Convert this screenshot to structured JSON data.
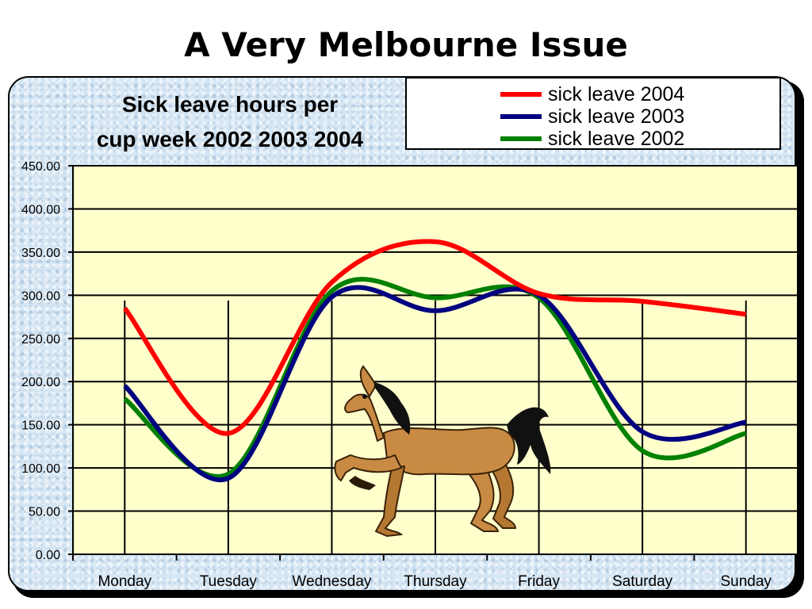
{
  "slide": {
    "title": "A Very Melbourne Issue"
  },
  "chart_data": {
    "type": "line",
    "title_lines": [
      "Sick leave hours per",
      "cup week 2002 2003 2004"
    ],
    "categories": [
      "Monday",
      "Tuesday",
      "Wednesday",
      "Thursday",
      "Friday",
      "Saturday",
      "Sunday"
    ],
    "ylim": [
      0,
      450
    ],
    "yticks": [
      "0.00",
      "50.00",
      "100.00",
      "150.00",
      "200.00",
      "250.00",
      "300.00",
      "350.00",
      "400.00",
      "450.00"
    ],
    "grid": true,
    "legend_position": "top-right",
    "plot_background": "#ffffcc",
    "series": [
      {
        "name": "sick leave 2004",
        "color": "#ff0000",
        "values": [
          285,
          140,
          315,
          362,
          302,
          293,
          278
        ]
      },
      {
        "name": "sick leave 2003",
        "color": "#000080",
        "values": [
          195,
          88,
          298,
          282,
          300,
          142,
          153
        ]
      },
      {
        "name": "sick leave 2002",
        "color": "#008000",
        "values": [
          180,
          93,
          305,
          297,
          297,
          120,
          140
        ]
      }
    ]
  }
}
